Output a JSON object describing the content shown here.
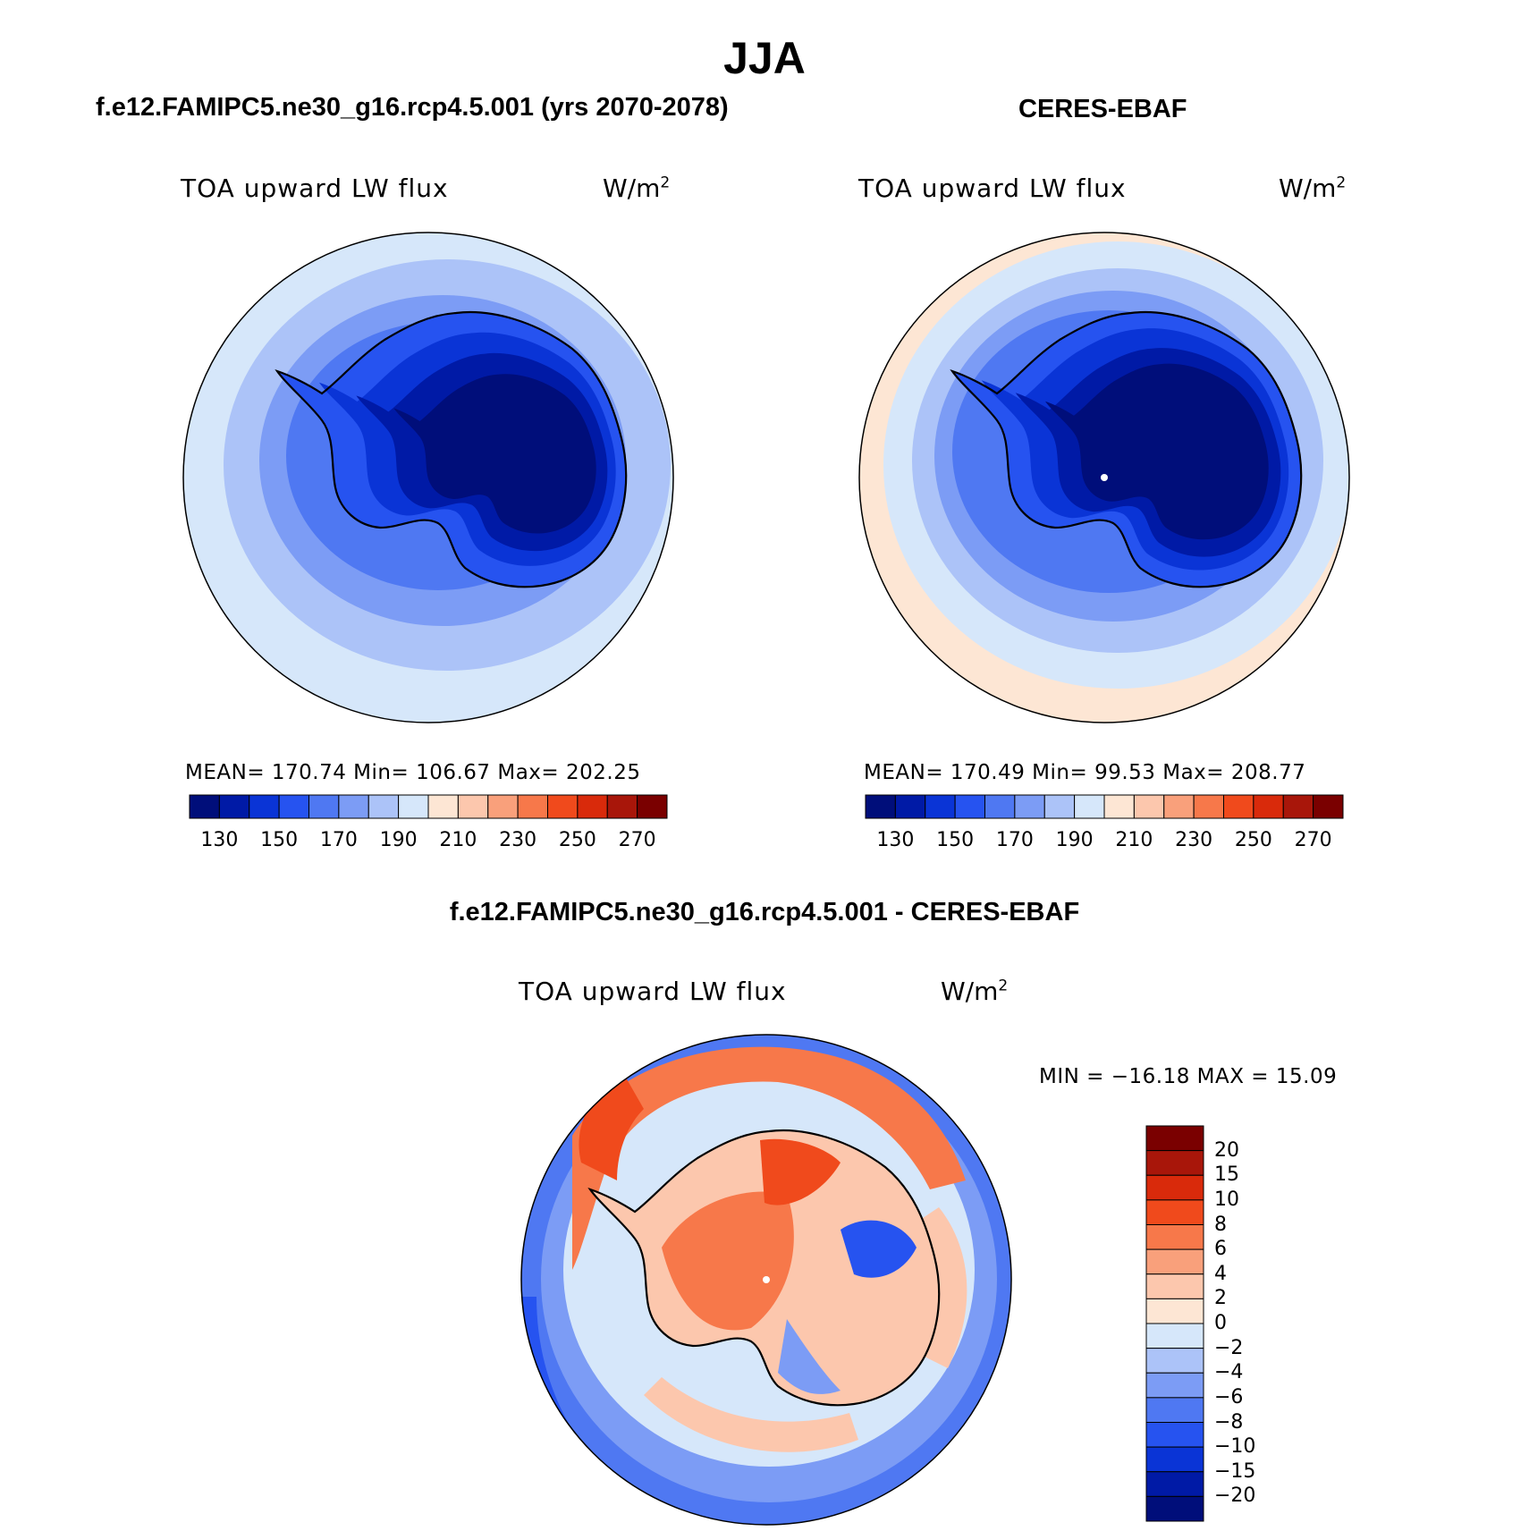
{
  "figure": {
    "title": "JJA",
    "left_panel_title": "f.e12.FAMIPC5.ne30_g16.rcp4.5.001 (yrs 2070-2078)",
    "right_panel_title": "CERES-EBAF",
    "diff_panel_title": "f.e12.FAMIPC5.ne30_g16.rcp4.5.001 - CERES-EBAF"
  },
  "panels": {
    "model": {
      "variable": "TOA upward LW flux",
      "units": "W/m",
      "units_exp": "2",
      "stats": "MEAN= 170.74   Min= 106.67   Max= 202.25"
    },
    "obs": {
      "variable": "TOA upward LW flux",
      "units": "W/m",
      "units_exp": "2",
      "stats": "MEAN= 170.49   Min=   99.53   Max= 208.77"
    },
    "diff": {
      "variable": "TOA upward LW flux",
      "units": "W/m",
      "units_exp": "2",
      "stats": "MIN = −16.18 MAX =   15.09"
    }
  },
  "colorbars": {
    "abs_colors": [
      "#000e7a",
      "#001aa6",
      "#0a34d6",
      "#2653f0",
      "#4f78f2",
      "#7c9cf5",
      "#acc3f8",
      "#d6e7fa",
      "#fde6d4",
      "#fcc7ad",
      "#f9a07b",
      "#f7784a",
      "#f04a1c",
      "#d92a0b",
      "#a8160a",
      "#7a0000"
    ],
    "abs_labels": [
      "130",
      "150",
      "170",
      "190",
      "210",
      "230",
      "250",
      "270"
    ],
    "diff_colors": [
      "#7a0000",
      "#a8160a",
      "#d92a0b",
      "#f04a1c",
      "#f7784a",
      "#f9a07b",
      "#fcc7ad",
      "#fde6d4",
      "#d6e7fa",
      "#acc3f8",
      "#7c9cf5",
      "#4f78f2",
      "#2653f0",
      "#0a34d6",
      "#001aa6",
      "#000e7a"
    ],
    "diff_labels": [
      "20",
      "15",
      "10",
      "8",
      "6",
      "4",
      "2",
      "0",
      "−2",
      "−4",
      "−6",
      "−8",
      "−10",
      "−15",
      "−20"
    ]
  },
  "map_data": {
    "projection": "south polar stereographic",
    "region": "Southern Hemisphere / Antarctica",
    "fill_colors": {
      "ocean_outer": "#d6e7fa",
      "ring_1": "#acc3f8",
      "ring_2": "#7c9cf5",
      "ring_3": "#4f78f2",
      "coast_band": "#2653f0",
      "inland": "#0a34d6",
      "plateau": "#000e7a",
      "warm_edge": "#fde6d4",
      "diff_warm": "#f7784a",
      "diff_warm_light": "#fcc7ad",
      "diff_cool": "#7c9cf5",
      "diff_cool_strong": "#2653f0"
    }
  }
}
